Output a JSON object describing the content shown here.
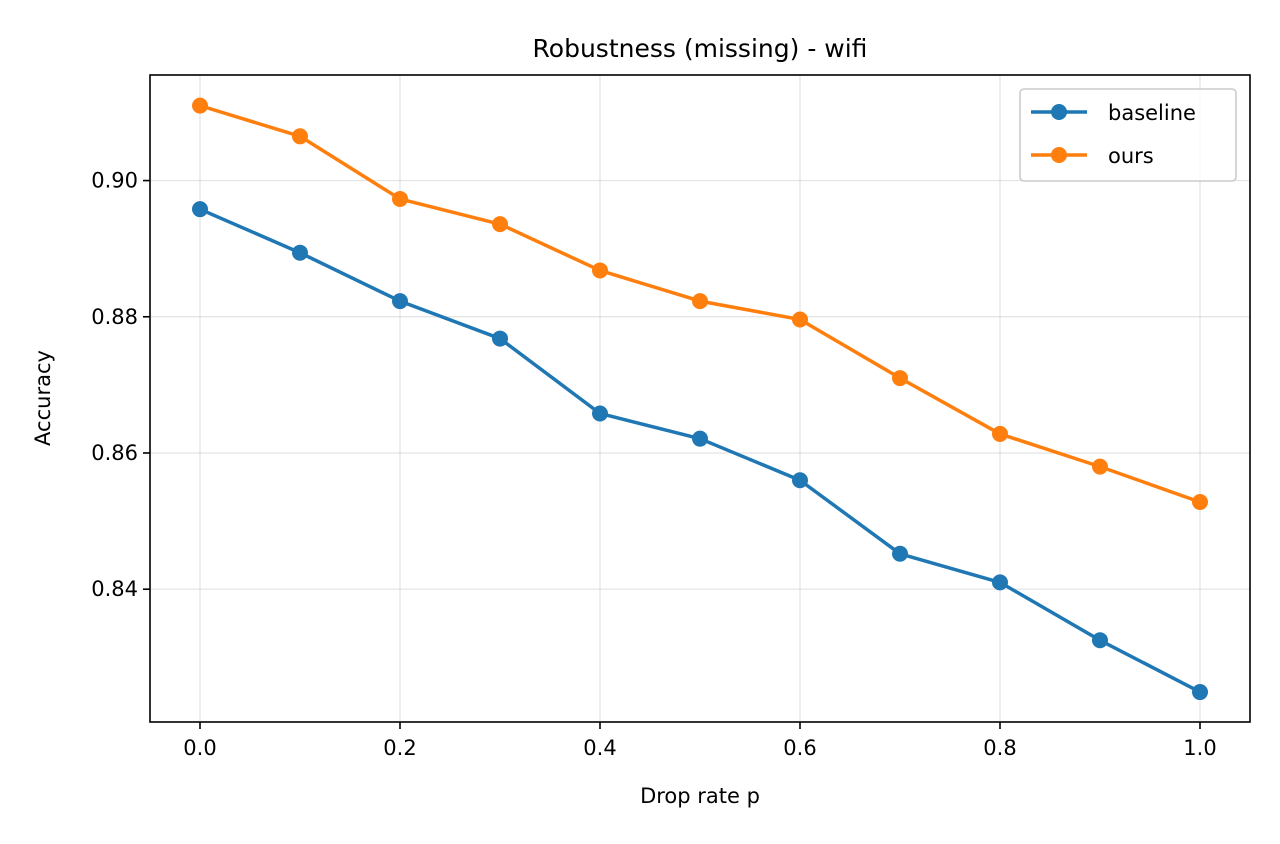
{
  "chart_data": {
    "type": "line",
    "title": "Robustness (missing) - wifi",
    "xlabel": "Drop rate p",
    "ylabel": "Accuracy",
    "x": [
      0.0,
      0.1,
      0.2,
      0.3,
      0.4,
      0.5,
      0.6,
      0.7,
      0.8,
      0.9,
      1.0
    ],
    "xlim": [
      -0.05,
      1.05
    ],
    "ylim": [
      0.8205,
      0.9155
    ],
    "xticks": [
      "0.0",
      "0.2",
      "0.4",
      "0.6",
      "0.8",
      "1.0"
    ],
    "xtick_values": [
      0.0,
      0.2,
      0.4,
      0.6,
      0.8,
      1.0
    ],
    "yticks": [
      "0.84",
      "0.86",
      "0.88",
      "0.90"
    ],
    "ytick_values": [
      0.84,
      0.86,
      0.88,
      0.9
    ],
    "grid": true,
    "legend_position": "top-right",
    "series": [
      {
        "name": "baseline",
        "color": "#1f77b4",
        "values": [
          0.8958,
          0.8894,
          0.8823,
          0.8768,
          0.8658,
          0.8621,
          0.856,
          0.8452,
          0.841,
          0.8325,
          0.8249
        ]
      },
      {
        "name": "ours",
        "color": "#ff7f0e",
        "values": [
          0.911,
          0.9065,
          0.8973,
          0.8936,
          0.8868,
          0.8823,
          0.8796,
          0.871,
          0.8628,
          0.858,
          0.8528
        ]
      }
    ]
  }
}
